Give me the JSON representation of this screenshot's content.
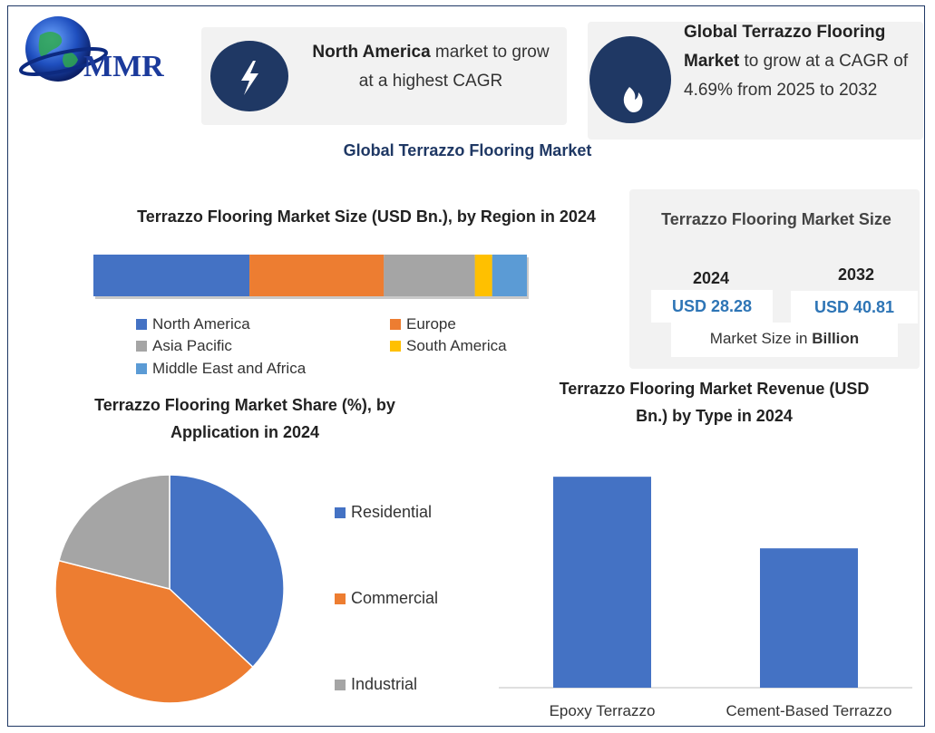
{
  "logo": {
    "text": "MMR"
  },
  "highlight1": {
    "bold": "North America",
    "rest": " market to grow at a highest CAGR",
    "icon": "lightning-icon"
  },
  "highlight2": {
    "bold": "Global Terrazzo Flooring Market",
    "rest": " to grow at a CAGR of 4.69% from 2025 to 2032",
    "icon": "flame-icon"
  },
  "main_title": "Global Terrazzo Flooring Market",
  "market_size": {
    "title": "Terrazzo Flooring Market Size",
    "year1": "2024",
    "value1": "USD 28.28",
    "year2": "2032",
    "value2": "USD 40.81",
    "unit_prefix": "Market Size in ",
    "unit_bold": "Billion"
  },
  "colors": {
    "blue": "#4472c4",
    "orange": "#ed7d31",
    "gray": "#a5a5a5",
    "yellow": "#ffc000",
    "lightblue": "#5b9bd5",
    "navy": "#1f3864"
  },
  "chart_data": [
    {
      "type": "bar",
      "orientation": "horizontal-stacked",
      "title": "Terrazzo Flooring Market Size (USD Bn.), by Region in 2024",
      "series": [
        {
          "name": "North America",
          "value": 36,
          "color": "#4472c4"
        },
        {
          "name": "Europe",
          "value": 31,
          "color": "#ed7d31"
        },
        {
          "name": "Asia Pacific",
          "value": 21,
          "color": "#a5a5a5"
        },
        {
          "name": "South America",
          "value": 4,
          "color": "#ffc000"
        },
        {
          "name": "Middle East and Africa",
          "value": 8,
          "color": "#5b9bd5"
        }
      ],
      "legend": "bottom"
    },
    {
      "type": "pie",
      "title": "Terrazzo Flooring Market Share (%), by Application in 2024",
      "series": [
        {
          "name": "Residential",
          "value": 37,
          "color": "#4472c4"
        },
        {
          "name": "Commercial",
          "value": 42,
          "color": "#ed7d31"
        },
        {
          "name": "Industrial",
          "value": 21,
          "color": "#a5a5a5"
        }
      ],
      "legend": "right"
    },
    {
      "type": "bar",
      "title": "Terrazzo Flooring Market Revenue (USD Bn.) by Type in 2024",
      "categories": [
        "Epoxy Terrazzo",
        "Cement-Based Terrazzo"
      ],
      "values": [
        16.5,
        10.9
      ],
      "ylim": [
        0,
        18
      ],
      "color": "#4472c4"
    }
  ]
}
